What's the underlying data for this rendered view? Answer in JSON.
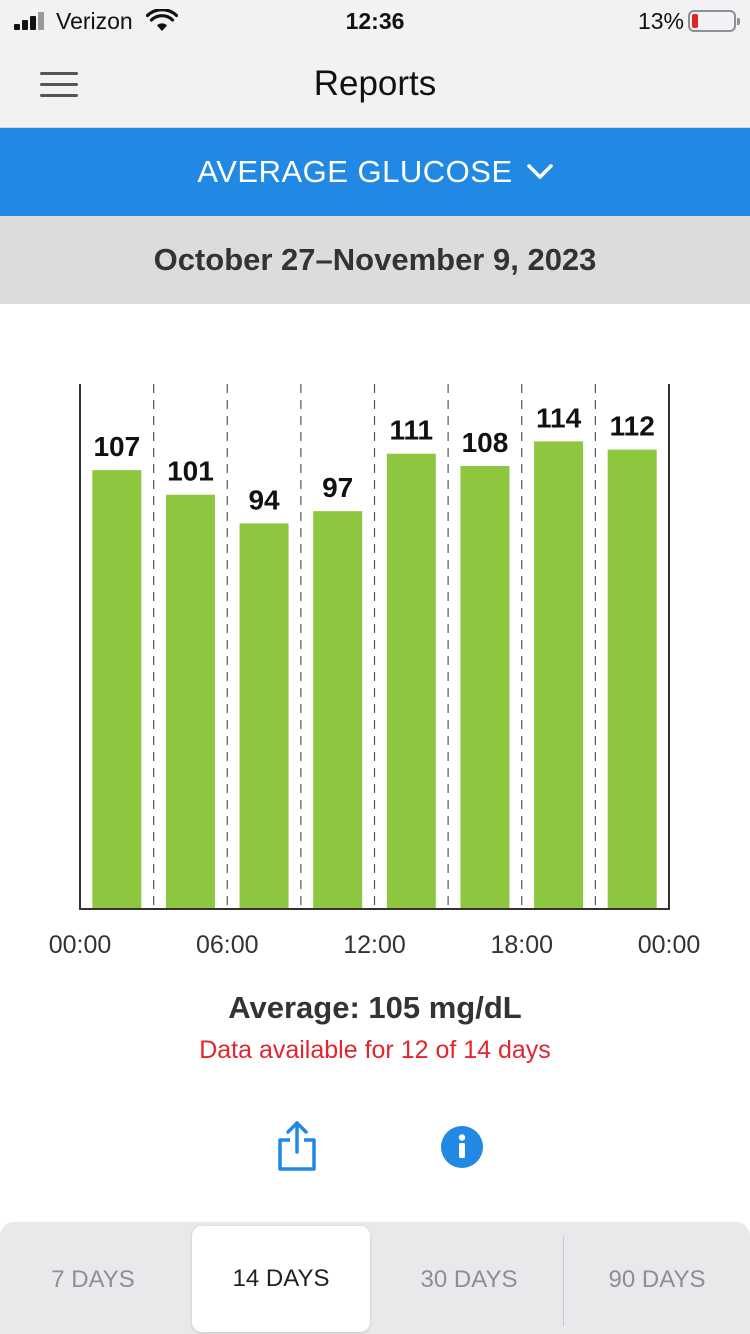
{
  "status_bar": {
    "carrier": "Verizon",
    "time": "12:36",
    "battery": "13%"
  },
  "nav": {
    "title": "Reports"
  },
  "report_selector": {
    "label": "AVERAGE GLUCOSE"
  },
  "date_range": "October 27–November 9, 2023",
  "chart_data": {
    "type": "bar",
    "categories": [
      "00:00-03:00",
      "03:00-06:00",
      "06:00-09:00",
      "09:00-12:00",
      "12:00-15:00",
      "15:00-18:00",
      "18:00-21:00",
      "21:00-00:00"
    ],
    "values": [
      107,
      101,
      94,
      97,
      111,
      108,
      114,
      112
    ],
    "x_tick_labels": [
      "00:00",
      "06:00",
      "12:00",
      "18:00",
      "00:00"
    ],
    "ylim": [
      0,
      128
    ],
    "bar_color": "#8dc63f",
    "grid": "dashed vertical lines between bars"
  },
  "summary": {
    "average": "Average: 105 mg/dL",
    "availability": "Data available for 12 of 14 days"
  },
  "actions": {
    "share_icon": "share-icon",
    "info_icon": "info-icon"
  },
  "periods": [
    {
      "label": "7 DAYS",
      "active": false
    },
    {
      "label": "14 DAYS",
      "active": true
    },
    {
      "label": "30 DAYS",
      "active": false
    },
    {
      "label": "90 DAYS",
      "active": false
    }
  ],
  "colors": {
    "accent": "#2189e3",
    "bar": "#8dc63f",
    "warning": "#e0262e"
  }
}
